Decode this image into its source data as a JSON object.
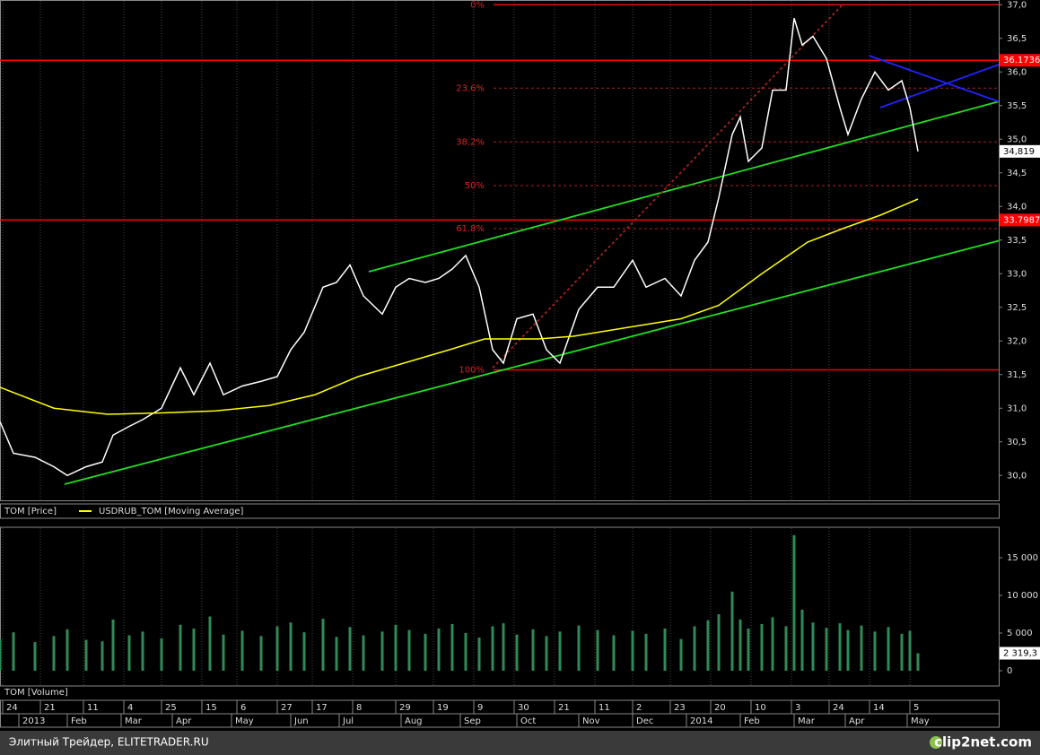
{
  "chart_data": [
    {
      "type": "line",
      "xlim": [
        0,
        371
      ],
      "ylim": [
        29.63,
        37.07
      ],
      "yticks": [
        {
          "value": 30,
          "label": "30,0"
        },
        {
          "value": 30.5,
          "label": "30,5"
        },
        {
          "value": 31,
          "label": "31,0"
        },
        {
          "value": 31.5,
          "label": "31,5"
        },
        {
          "value": 32,
          "label": "32,0"
        },
        {
          "value": 32.5,
          "label": "32,5"
        },
        {
          "value": 33,
          "label": "33,0"
        },
        {
          "value": 33.5,
          "label": "33,5"
        },
        {
          "value": 34,
          "label": "34,0"
        },
        {
          "value": 34.5,
          "label": "34,5"
        },
        {
          "value": 35,
          "label": "35,0"
        },
        {
          "value": 35.5,
          "label": "35,5"
        },
        {
          "value": 36,
          "label": "36,0"
        },
        {
          "value": 36.5,
          "label": "36,5"
        },
        {
          "value": 37,
          "label": "37,0"
        }
      ],
      "xticks": [
        {
          "value": 1,
          "label": "24"
        },
        {
          "value": 15,
          "label": "21"
        },
        {
          "value": 31,
          "label": "11"
        },
        {
          "value": 46,
          "label": "4"
        },
        {
          "value": 60,
          "label": "25"
        },
        {
          "value": 75,
          "label": "15"
        },
        {
          "value": 88,
          "label": "6"
        },
        {
          "value": 103,
          "label": "27"
        },
        {
          "value": 116,
          "label": "17"
        },
        {
          "value": 131,
          "label": "8"
        },
        {
          "value": 147,
          "label": "29"
        },
        {
          "value": 161,
          "label": "19"
        },
        {
          "value": 176,
          "label": "9"
        },
        {
          "value": 191,
          "label": "30"
        },
        {
          "value": 206,
          "label": "21"
        },
        {
          "value": 221,
          "label": "11"
        },
        {
          "value": 235,
          "label": "2"
        },
        {
          "value": 249,
          "label": "23"
        },
        {
          "value": 264,
          "label": "20"
        },
        {
          "value": 279,
          "label": "10"
        },
        {
          "value": 294,
          "label": "3"
        },
        {
          "value": 308,
          "label": "24"
        },
        {
          "value": 323,
          "label": "14"
        },
        {
          "value": 338,
          "label": "5"
        }
      ],
      "month_ticks": [
        {
          "value": 7,
          "label": "2013"
        },
        {
          "value": 25,
          "label": "Feb"
        },
        {
          "value": 45,
          "label": "Mar"
        },
        {
          "value": 64,
          "label": "Apr"
        },
        {
          "value": 86,
          "label": "May"
        },
        {
          "value": 108,
          "label": "Jun"
        },
        {
          "value": 126,
          "label": "Jul"
        },
        {
          "value": 149,
          "label": "Aug"
        },
        {
          "value": 171,
          "label": "Sep"
        },
        {
          "value": 192,
          "label": "Oct"
        },
        {
          "value": 215,
          "label": "Nov"
        },
        {
          "value": 235,
          "label": "Dec"
        },
        {
          "value": 255,
          "label": "2014"
        },
        {
          "value": 275,
          "label": "Feb"
        },
        {
          "value": 295,
          "label": "Mar"
        },
        {
          "value": 314,
          "label": "Apr"
        },
        {
          "value": 337,
          "label": "May"
        }
      ],
      "xgrid": true,
      "series": [
        {
          "name": "TOM [Price]",
          "color": "#ffffff",
          "x": [
            0,
            5,
            13,
            20,
            25,
            32,
            38,
            42,
            48,
            53,
            60,
            67,
            72,
            78,
            83,
            90,
            97,
            103,
            108,
            113,
            120,
            125,
            130,
            135,
            142,
            147,
            152,
            158,
            163,
            168,
            173,
            178,
            183,
            187,
            192,
            198,
            203,
            208,
            215,
            222,
            228,
            235,
            240,
            247,
            253,
            258,
            263,
            267,
            272,
            275,
            278,
            283,
            287,
            292,
            295,
            298,
            302,
            307,
            312,
            315,
            320,
            325,
            330,
            335,
            338,
            341
          ],
          "values": [
            30.8,
            30.33,
            30.27,
            30.13,
            30.0,
            30.13,
            30.2,
            30.6,
            30.73,
            30.83,
            31.0,
            31.6,
            31.2,
            31.67,
            31.2,
            31.33,
            31.4,
            31.47,
            31.87,
            32.13,
            32.8,
            32.87,
            33.13,
            32.67,
            32.4,
            32.8,
            32.93,
            32.87,
            32.93,
            33.07,
            33.27,
            32.8,
            31.87,
            31.67,
            32.33,
            32.4,
            31.87,
            31.67,
            32.47,
            32.8,
            32.8,
            33.2,
            32.8,
            32.93,
            32.67,
            33.2,
            33.47,
            34.13,
            35.07,
            35.33,
            34.67,
            34.87,
            35.73,
            35.73,
            36.8,
            36.4,
            36.53,
            36.2,
            35.47,
            35.07,
            35.6,
            36.0,
            35.73,
            35.87,
            35.47,
            34.82
          ]
        },
        {
          "name": "USDRUB_TOM [Moving Average]",
          "color": "#ffff00",
          "x": [
            0,
            20,
            40,
            60,
            80,
            100,
            117,
            133,
            150,
            167,
            180,
            200,
            213,
            233,
            253,
            267,
            283,
            300,
            313,
            327,
            341
          ],
          "values": [
            31.31,
            31.0,
            30.91,
            30.93,
            30.96,
            31.04,
            31.2,
            31.47,
            31.67,
            31.87,
            32.03,
            32.03,
            32.07,
            32.2,
            32.33,
            32.53,
            33.0,
            33.47,
            33.67,
            33.87,
            34.11
          ]
        }
      ],
      "last_value": 34.819,
      "last_label": "34,819",
      "level_color": "#ff0000",
      "levels": [
        37,
        31.57
      ],
      "labeled_levels": [
        36.1736,
        33.7987
      ],
      "fibonacci": [
        {
          "label": "0%",
          "value": 37.0
        },
        {
          "label": "23.6%",
          "value": 35.76
        },
        {
          "label": "38.2%",
          "value": 34.96
        },
        {
          "label": "50%",
          "value": 34.31
        },
        {
          "label": "61.8%",
          "value": 33.67
        },
        {
          "label": "100%",
          "value": 31.57
        }
      ],
      "trendlines": [
        {
          "color": "#22dd22",
          "x": [
            24,
            371
          ],
          "values": [
            29.87,
            33.49
          ]
        },
        {
          "color": "#22dd22",
          "x": [
            137,
            371
          ],
          "values": [
            33.03,
            35.56
          ]
        },
        {
          "color": "#2222ff",
          "x": [
            323,
            371
          ],
          "values": [
            36.24,
            35.56
          ]
        },
        {
          "color": "#2222ff",
          "x": [
            327,
            371
          ],
          "values": [
            35.47,
            36.11
          ]
        },
        {
          "color": "#aa2222",
          "x": [
            183,
            313
          ],
          "values": [
            31.6,
            37.0
          ]
        }
      ]
    },
    {
      "type": "bar",
      "xlim": [
        0,
        371
      ],
      "ylim": [
        -2024,
        19048
      ],
      "yticks": [
        {
          "value": 0,
          "label": "0"
        },
        {
          "value": 5000,
          "label": "5 000"
        },
        {
          "value": 10000,
          "label": "10 000"
        },
        {
          "value": 15000,
          "label": "15 000"
        }
      ],
      "series": [
        {
          "name": "TOM [Volume]",
          "color": "#2e8b57",
          "x": [
            0,
            5,
            13,
            20,
            25,
            32,
            38,
            42,
            48,
            53,
            60,
            67,
            72,
            78,
            83,
            90,
            97,
            103,
            108,
            113,
            120,
            125,
            130,
            135,
            142,
            147,
            152,
            158,
            163,
            168,
            173,
            178,
            183,
            187,
            192,
            198,
            203,
            208,
            215,
            222,
            228,
            235,
            240,
            247,
            253,
            258,
            263,
            267,
            272,
            275,
            278,
            283,
            287,
            292,
            295,
            298,
            302,
            307,
            312,
            315,
            320,
            325,
            330,
            335,
            338,
            341
          ],
          "values": [
            4200,
            5100,
            3800,
            4600,
            5500,
            4100,
            3900,
            6800,
            4700,
            5200,
            4300,
            6100,
            5600,
            7200,
            4800,
            5300,
            4600,
            5900,
            6400,
            5100,
            6900,
            4500,
            5800,
            4700,
            5200,
            6100,
            5400,
            4900,
            5600,
            6200,
            5000,
            4400,
            5900,
            6300,
            4800,
            5500,
            4600,
            5200,
            6000,
            5400,
            4700,
            5300,
            4900,
            5600,
            4200,
            5900,
            6700,
            7500,
            10500,
            6800,
            5600,
            6200,
            7100,
            5900,
            18000,
            8100,
            6400,
            5700,
            6300,
            5400,
            6000,
            5200,
            5800,
            4900,
            5300,
            2319.3
          ]
        }
      ],
      "last_value": 2319.3,
      "last_label": "2 319,3"
    }
  ],
  "footer": {
    "left": "Элитный Трейдер, ELITETRADER.RU",
    "right": "clip2net.com"
  }
}
